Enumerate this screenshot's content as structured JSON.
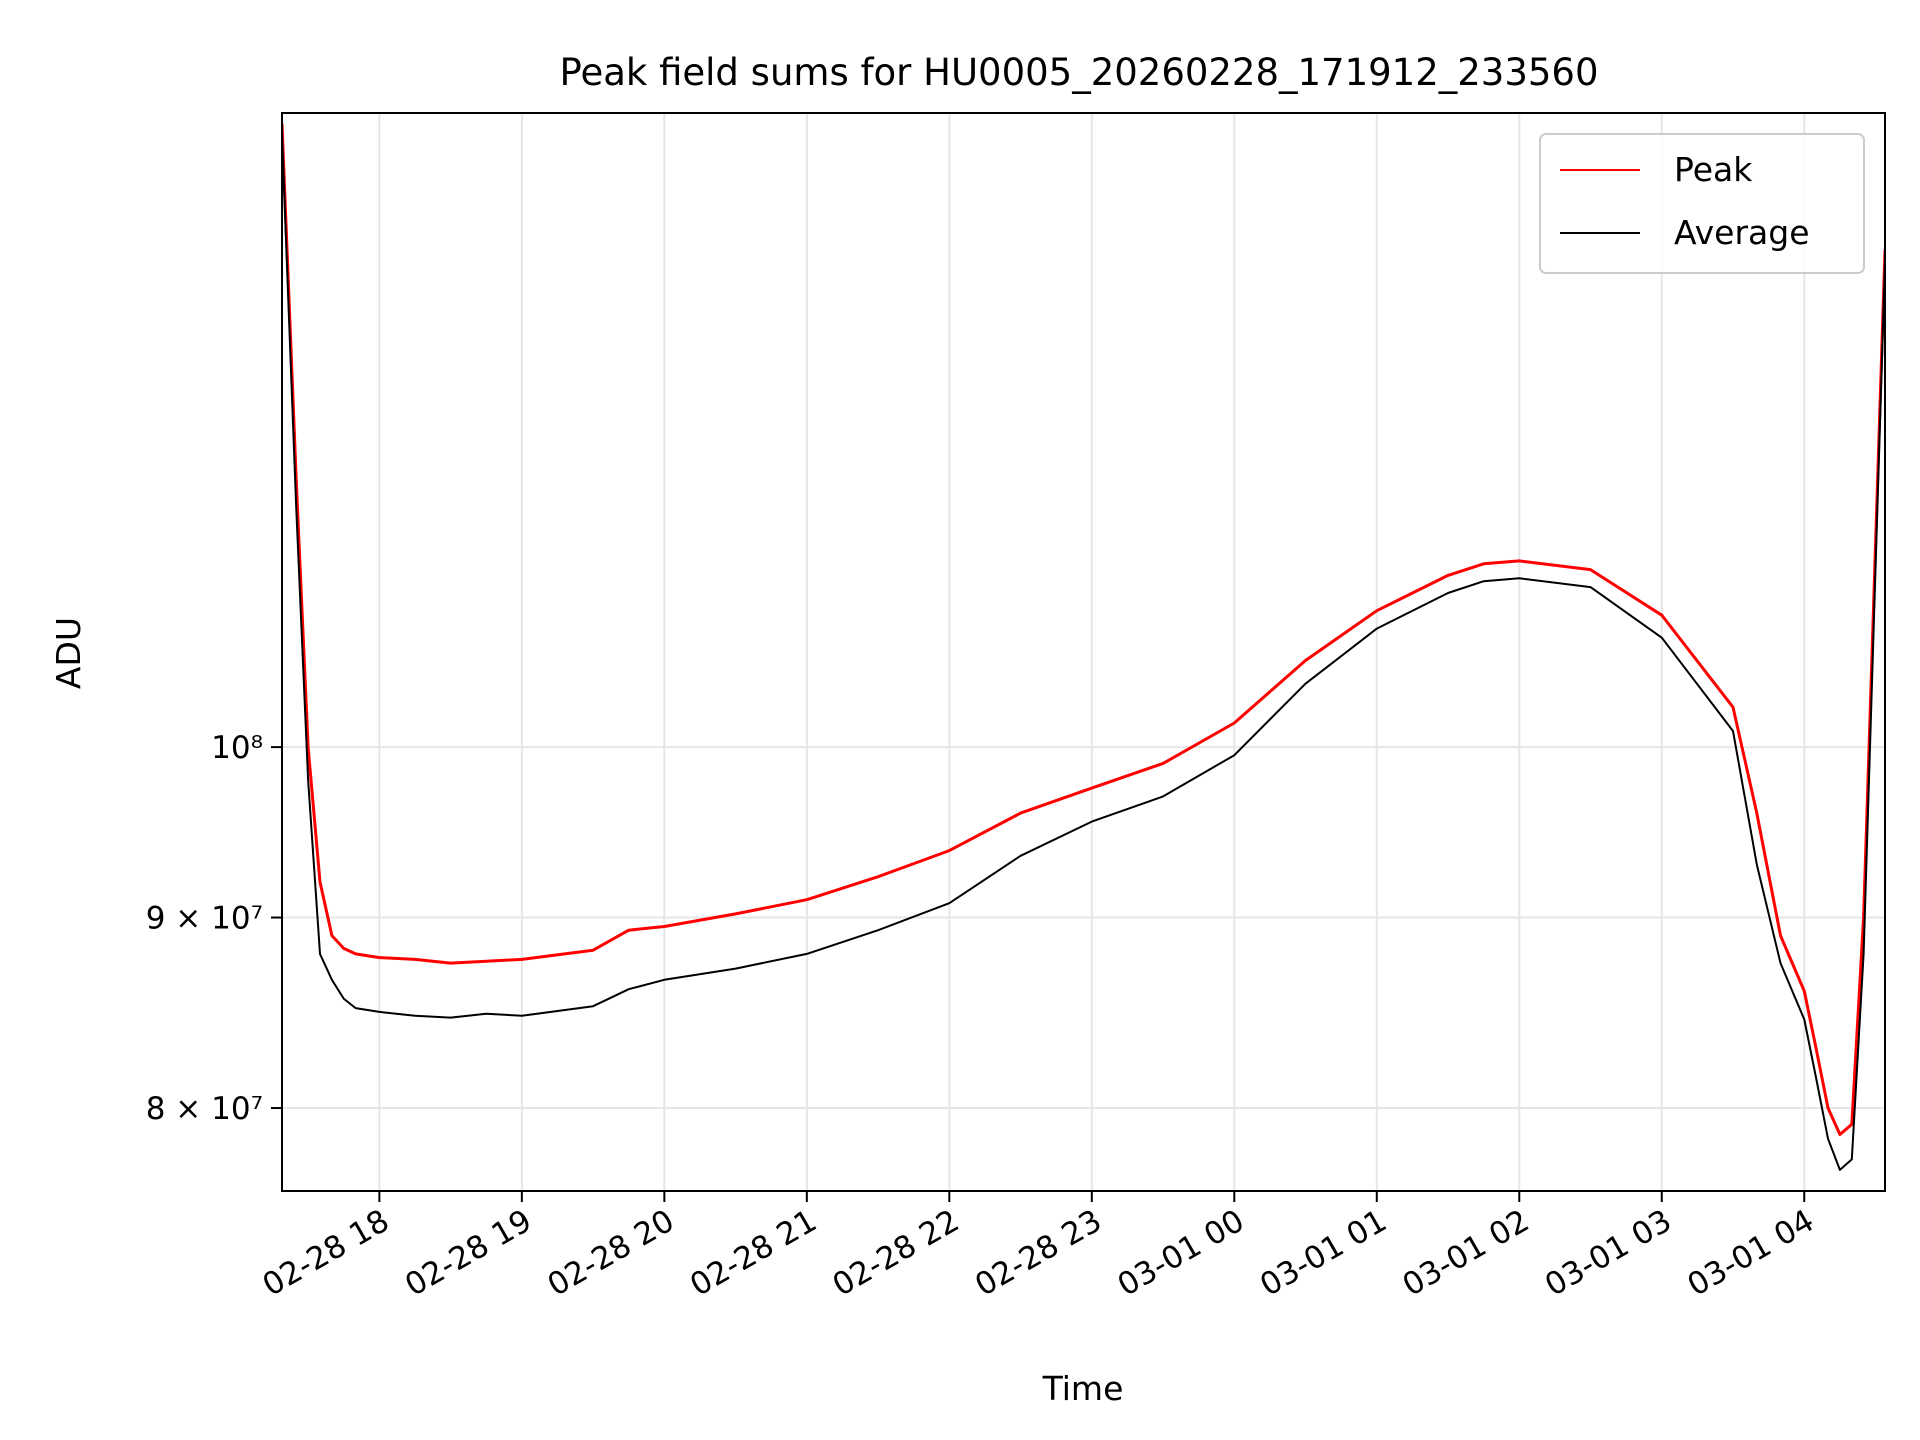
{
  "chart_data": {
    "type": "line",
    "title": "Peak field sums for HU0005_20260228_171912_233560",
    "xlabel": "Time",
    "ylabel": "ADU",
    "yscale": "log",
    "grid": true,
    "legend_position": "top-right",
    "xlim": [
      "2026-02-28 17:19",
      "2026-03-01 04:34"
    ],
    "ylim": [
      76000000,
      148000000
    ],
    "x_ticks": [
      {
        "value": "2026-02-28 18:00",
        "label": "02-28 18"
      },
      {
        "value": "2026-02-28 19:00",
        "label": "02-28 19"
      },
      {
        "value": "2026-02-28 20:00",
        "label": "02-28 20"
      },
      {
        "value": "2026-02-28 21:00",
        "label": "02-28 21"
      },
      {
        "value": "2026-02-28 22:00",
        "label": "02-28 22"
      },
      {
        "value": "2026-02-28 23:00",
        "label": "02-28 23"
      },
      {
        "value": "2026-03-01 00:00",
        "label": "03-01 00"
      },
      {
        "value": "2026-03-01 01:00",
        "label": "03-01 01"
      },
      {
        "value": "2026-03-01 02:00",
        "label": "03-01 02"
      },
      {
        "value": "2026-03-01 03:00",
        "label": "03-01 03"
      },
      {
        "value": "2026-03-01 04:00",
        "label": "03-01 04"
      }
    ],
    "y_ticks": [
      {
        "value": 80000000,
        "label": "8 × 10⁷"
      },
      {
        "value": 90000000,
        "label": "9 × 10⁷"
      },
      {
        "value": 100000000,
        "label": "10⁸"
      }
    ],
    "series": [
      {
        "name": "Peak",
        "color": "#ff0000",
        "x": [
          "2026-02-28 17:19",
          "2026-02-28 17:25",
          "2026-02-28 17:30",
          "2026-02-28 17:35",
          "2026-02-28 17:40",
          "2026-02-28 17:45",
          "2026-02-28 17:50",
          "2026-02-28 18:00",
          "2026-02-28 18:15",
          "2026-02-28 18:30",
          "2026-02-28 18:45",
          "2026-02-28 19:00",
          "2026-02-28 19:30",
          "2026-02-28 19:45",
          "2026-02-28 20:00",
          "2026-02-28 20:30",
          "2026-02-28 21:00",
          "2026-02-28 21:30",
          "2026-02-28 22:00",
          "2026-02-28 22:30",
          "2026-02-28 23:00",
          "2026-02-28 23:30",
          "2026-03-01 00:00",
          "2026-03-01 00:30",
          "2026-03-01 01:00",
          "2026-03-01 01:30",
          "2026-03-01 01:45",
          "2026-03-01 02:00",
          "2026-03-01 02:30",
          "2026-03-01 03:00",
          "2026-03-01 03:30",
          "2026-03-01 03:40",
          "2026-03-01 03:50",
          "2026-03-01 04:00",
          "2026-03-01 04:05",
          "2026-03-01 04:10",
          "2026-03-01 04:15",
          "2026-03-01 04:20",
          "2026-03-01 04:25",
          "2026-03-01 04:34"
        ],
        "values": [
          147000000,
          118000000,
          100000000,
          92000000,
          89000000,
          88300000,
          88000000,
          87800000,
          87700000,
          87500000,
          87600000,
          87700000,
          88200000,
          89300000,
          89500000,
          90200000,
          91000000,
          92300000,
          93800000,
          96000000,
          97500000,
          99000000,
          101500000,
          105500000,
          108800000,
          111200000,
          112000000,
          112200000,
          111600000,
          108500000,
          102500000,
          96000000,
          89000000,
          86000000,
          83000000,
          80000000,
          78700000,
          79200000,
          90000000,
          136000000
        ]
      },
      {
        "name": "Average",
        "color": "#000000",
        "x": [
          "2026-02-28 17:19",
          "2026-02-28 17:25",
          "2026-02-28 17:30",
          "2026-02-28 17:35",
          "2026-02-28 17:40",
          "2026-02-28 17:45",
          "2026-02-28 17:50",
          "2026-02-28 18:00",
          "2026-02-28 18:15",
          "2026-02-28 18:30",
          "2026-02-28 18:45",
          "2026-02-28 19:00",
          "2026-02-28 19:30",
          "2026-02-28 19:45",
          "2026-02-28 20:00",
          "2026-02-28 20:30",
          "2026-02-28 21:00",
          "2026-02-28 21:30",
          "2026-02-28 22:00",
          "2026-02-28 22:30",
          "2026-02-28 23:00",
          "2026-02-28 23:30",
          "2026-03-01 00:00",
          "2026-03-01 00:30",
          "2026-03-01 01:00",
          "2026-03-01 01:30",
          "2026-03-01 01:45",
          "2026-03-01 02:00",
          "2026-03-01 02:30",
          "2026-03-01 03:00",
          "2026-03-01 03:30",
          "2026-03-01 03:40",
          "2026-03-01 03:50",
          "2026-03-01 04:00",
          "2026-03-01 04:05",
          "2026-03-01 04:10",
          "2026-03-01 04:15",
          "2026-03-01 04:20",
          "2026-03-01 04:25",
          "2026-03-01 04:34"
        ],
        "values": [
          146000000,
          116000000,
          98000000,
          88000000,
          86600000,
          85600000,
          85100000,
          84900000,
          84700000,
          84600000,
          84800000,
          84700000,
          85200000,
          86100000,
          86600000,
          87200000,
          88000000,
          89300000,
          90800000,
          93500000,
          95500000,
          97000000,
          99500000,
          104000000,
          107600000,
          110000000,
          110800000,
          111000000,
          110400000,
          107000000,
          101000000,
          93000000,
          87500000,
          84500000,
          81500000,
          78500000,
          77000000,
          77500000,
          88000000,
          135000000
        ]
      }
    ]
  }
}
